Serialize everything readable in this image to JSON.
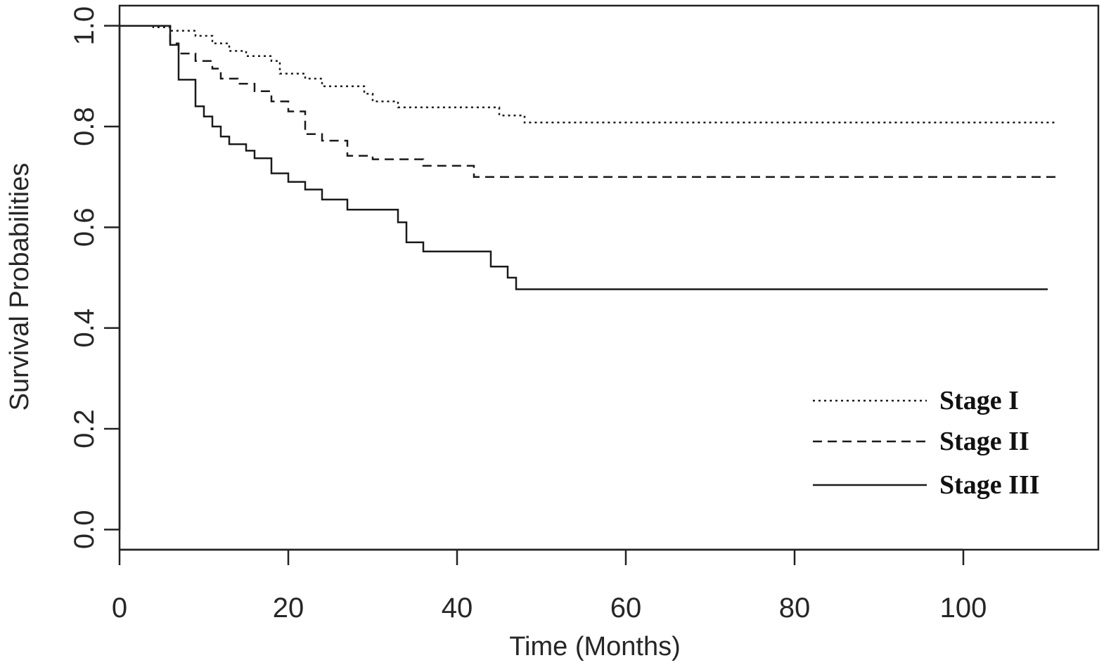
{
  "chart_data": {
    "type": "line",
    "xlabel": "Time (Months)",
    "ylabel": "Survival Probabilities",
    "xlim": [
      0,
      116
    ],
    "ylim": [
      -0.04,
      1.04
    ],
    "xticks": [
      0,
      20,
      40,
      60,
      80,
      100
    ],
    "xtick_labels": [
      "0",
      "20",
      "40",
      "60",
      "80",
      "100"
    ],
    "yticks": [
      0.0,
      0.2,
      0.4,
      0.6,
      0.8,
      1.0
    ],
    "ytick_labels": [
      "0.0",
      "0.2",
      "0.4",
      "0.6",
      "0.8",
      "1.0"
    ],
    "grid": false,
    "legend_position": "bottom-right",
    "step": true,
    "series": [
      {
        "name": "Stage I",
        "line_style": "dotted",
        "x": [
          0,
          4,
          6,
          9,
          11,
          13,
          15,
          18,
          19,
          22,
          24,
          29,
          30,
          33,
          45,
          48,
          111
        ],
        "y": [
          1.0,
          0.997,
          0.99,
          0.98,
          0.965,
          0.95,
          0.94,
          0.93,
          0.905,
          0.895,
          0.88,
          0.865,
          0.85,
          0.838,
          0.822,
          0.808,
          0.808
        ]
      },
      {
        "name": "Stage II",
        "line_style": "dashed",
        "x": [
          0,
          6,
          7,
          9,
          11,
          12,
          14,
          16,
          18,
          20,
          22,
          24,
          27,
          30,
          36,
          42,
          111
        ],
        "y": [
          1.0,
          0.965,
          0.945,
          0.93,
          0.915,
          0.895,
          0.885,
          0.87,
          0.85,
          0.83,
          0.785,
          0.772,
          0.742,
          0.735,
          0.722,
          0.7,
          0.7
        ]
      },
      {
        "name": "Stage III",
        "line_style": "solid",
        "x": [
          0,
          6,
          7,
          9,
          10,
          11,
          12,
          13,
          15,
          16,
          18,
          20,
          22,
          24,
          27,
          33,
          34,
          36,
          40,
          44,
          46,
          47,
          110
        ],
        "y": [
          1.0,
          0.962,
          0.893,
          0.84,
          0.82,
          0.8,
          0.78,
          0.765,
          0.752,
          0.737,
          0.707,
          0.69,
          0.675,
          0.655,
          0.635,
          0.61,
          0.57,
          0.552,
          0.552,
          0.522,
          0.5,
          0.477,
          0.477
        ]
      }
    ]
  }
}
